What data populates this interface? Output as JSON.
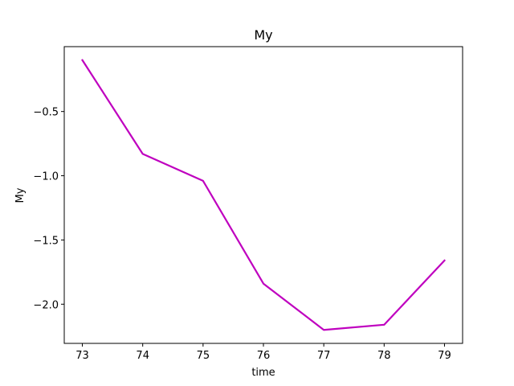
{
  "chart_data": {
    "type": "line",
    "title": "My",
    "xlabel": "time",
    "ylabel": "My",
    "x": [
      73,
      74,
      75,
      76,
      77,
      78,
      79
    ],
    "series": [
      {
        "values": [
          -0.1,
          -0.83,
          -1.04,
          -1.84,
          -2.2,
          -2.16,
          -1.66
        ],
        "color": "#bf00bf"
      }
    ],
    "xlim": [
      72.7,
      79.3
    ],
    "ylim": [
      -2.305,
      0.005
    ],
    "xticks": [
      73,
      74,
      75,
      76,
      77,
      78,
      79
    ],
    "xtick_labels": [
      "73",
      "74",
      "75",
      "76",
      "77",
      "78",
      "79"
    ],
    "yticks": [
      -0.5,
      -1.0,
      -1.5,
      -2.0
    ],
    "ytick_labels": [
      "−0.5",
      "−1.0",
      "−1.5",
      "−2.0"
    ],
    "grid": false,
    "legend": false
  }
}
